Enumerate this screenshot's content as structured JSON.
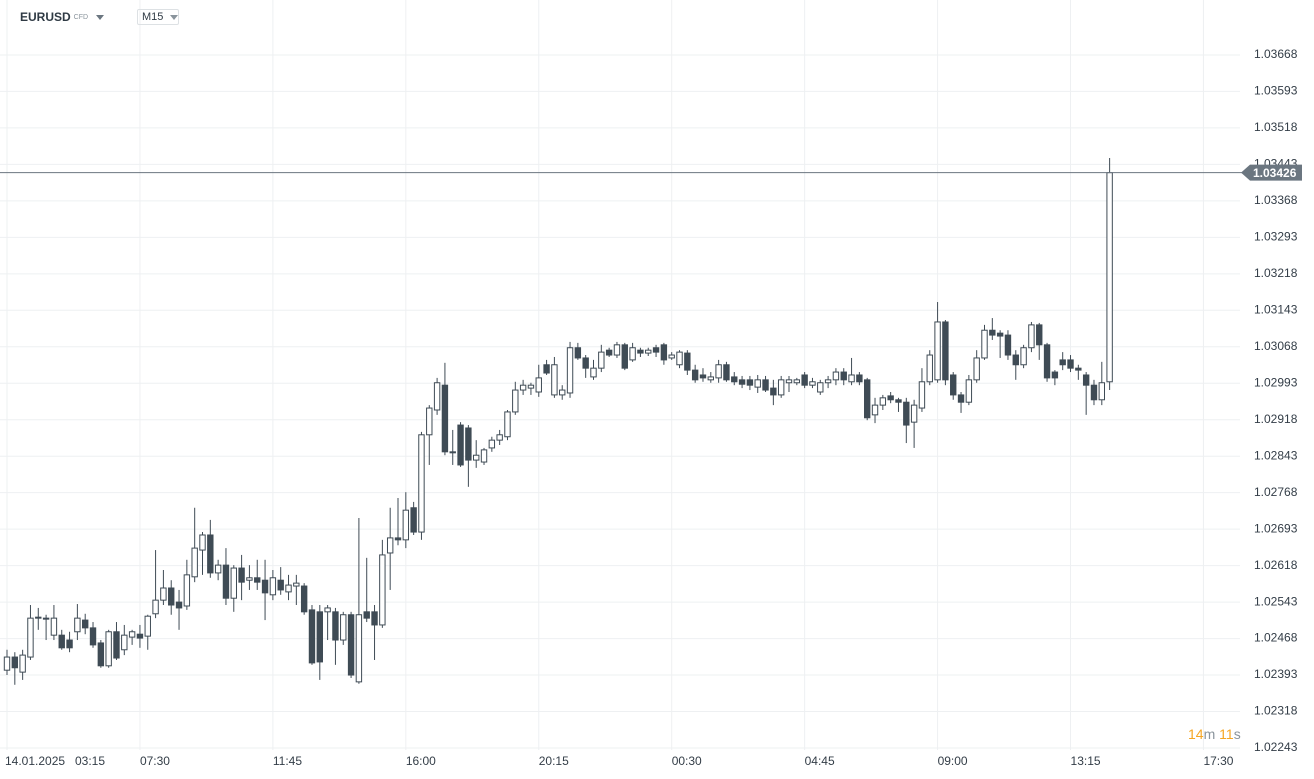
{
  "header": {
    "symbol": "EURUSD",
    "instrument_type": "CFD",
    "timeframe": "M15"
  },
  "countdown": [
    "14",
    "m",
    "11",
    "s"
  ],
  "chart_data": {
    "type": "candlestick",
    "date": "14.01.2025",
    "xticks": [
      "03:15",
      "07:30",
      "11:45",
      "16:00",
      "20:15",
      "00:30",
      "04:45",
      "09:00",
      "13:15",
      "17:30"
    ],
    "ylim": [
      1.02243,
      1.03781
    ],
    "yticks": [
      1.03668,
      1.03593,
      1.03518,
      1.03443,
      1.03368,
      1.03293,
      1.03218,
      1.03143,
      1.03068,
      1.02993,
      1.02918,
      1.02843,
      1.02768,
      1.02693,
      1.02618,
      1.02543,
      1.02468,
      1.02393,
      1.02318,
      1.02243
    ],
    "grid": true,
    "up_color": "#ffffff",
    "down_color": "#3f4b55",
    "current_price": 1.03426,
    "ohlc": [
      [
        1.02403,
        1.02445,
        1.02393,
        1.0243
      ],
      [
        1.0243,
        1.0244,
        1.02373,
        1.02408
      ],
      [
        1.02399,
        1.02445,
        1.02383,
        1.02434
      ],
      [
        1.0243,
        1.02537,
        1.02424,
        1.0251
      ],
      [
        1.0251,
        1.02531,
        1.02486,
        1.02512
      ],
      [
        1.0251,
        1.02517,
        1.02465,
        1.02508
      ],
      [
        1.02475,
        1.02537,
        1.02465,
        1.0251
      ],
      [
        1.02475,
        1.02486,
        1.02445,
        1.02449
      ],
      [
        1.02465,
        1.02482,
        1.0244,
        1.02449
      ],
      [
        1.02482,
        1.02539,
        1.02465,
        1.0251
      ],
      [
        1.02506,
        1.02519,
        1.02477,
        1.0249
      ],
      [
        1.0249,
        1.02502,
        1.02449,
        1.02455
      ],
      [
        1.02459,
        1.02465,
        1.02408,
        1.02412
      ],
      [
        1.02412,
        1.02486,
        1.02408,
        1.02482
      ],
      [
        1.02482,
        1.02502,
        1.02424,
        1.02428
      ],
      [
        1.02445,
        1.02496,
        1.02434,
        1.02475
      ],
      [
        1.02471,
        1.02486,
        1.02455,
        1.02482
      ],
      [
        1.02477,
        1.02496,
        1.02449,
        1.02469
      ],
      [
        1.02473,
        1.02517,
        1.02445,
        1.02514
      ],
      [
        1.02519,
        1.0265,
        1.0251,
        1.02547
      ],
      [
        1.02547,
        1.02609,
        1.02537,
        1.02572
      ],
      [
        1.02572,
        1.02588,
        1.02517,
        1.02537
      ],
      [
        1.02543,
        1.02568,
        1.02486,
        1.02531
      ],
      [
        1.02535,
        1.0263,
        1.02527,
        1.02599
      ],
      [
        1.02595,
        1.02737,
        1.02584,
        1.02654
      ],
      [
        1.0265,
        1.02687,
        1.02599,
        1.02681
      ],
      [
        1.02681,
        1.02712,
        1.02593,
        1.02603
      ],
      [
        1.02603,
        1.0263,
        1.02588,
        1.02619
      ],
      [
        1.02619,
        1.02654,
        1.02537,
        1.02551
      ],
      [
        1.02551,
        1.02619,
        1.02523,
        1.02613
      ],
      [
        1.02613,
        1.0264,
        1.02547,
        1.02584
      ],
      [
        1.02588,
        1.02619,
        1.02568,
        1.02593
      ],
      [
        1.02593,
        1.0263,
        1.02568,
        1.02584
      ],
      [
        1.02588,
        1.0263,
        1.02506,
        1.02562
      ],
      [
        1.02558,
        1.02609,
        1.02547,
        1.02593
      ],
      [
        1.02588,
        1.02615,
        1.02558,
        1.02568
      ],
      [
        1.02564,
        1.02599,
        1.02547,
        1.02578
      ],
      [
        1.02576,
        1.02599,
        1.02537,
        1.02582
      ],
      [
        1.02576,
        1.02582,
        1.02517,
        1.02523
      ],
      [
        1.02527,
        1.02537,
        1.02414,
        1.02418
      ],
      [
        1.02523,
        1.02537,
        1.02383,
        1.0242
      ],
      [
        1.02523,
        1.02537,
        1.02465,
        1.02531
      ],
      [
        1.02523,
        1.02531,
        1.02414,
        1.02465
      ],
      [
        1.02465,
        1.02523,
        1.02455,
        1.02517
      ],
      [
        1.02517,
        1.02523,
        1.02387,
        1.02393
      ],
      [
        1.02379,
        1.02716,
        1.02375,
        1.02517
      ],
      [
        1.02523,
        1.02634,
        1.02502,
        1.0251
      ],
      [
        1.02523,
        1.02537,
        1.02424,
        1.02496
      ],
      [
        1.02496,
        1.02671,
        1.0249,
        1.0264
      ],
      [
        1.02644,
        1.02737,
        1.02568,
        1.02675
      ],
      [
        1.02675,
        1.02757,
        1.0266,
        1.02671
      ],
      [
        1.02671,
        1.02769,
        1.02654,
        1.02732
      ],
      [
        1.02737,
        1.02749,
        1.02681,
        1.02687
      ],
      [
        1.02687,
        1.02893,
        1.02671,
        1.02887
      ],
      [
        1.02887,
        1.02948,
        1.02825,
        1.02942
      ],
      [
        1.02938,
        1.03004,
        1.02928,
        1.02994
      ],
      [
        1.02989,
        1.03035,
        1.02845,
        1.02852
      ],
      [
        1.02852,
        1.02897,
        1.02825,
        1.0285
      ],
      [
        1.02907,
        1.02913,
        1.02821,
        1.02825
      ],
      [
        1.02901,
        1.02907,
        1.0278,
        1.02835
      ],
      [
        1.02835,
        1.02876,
        1.02819,
        1.02845
      ],
      [
        1.02831,
        1.0286,
        1.02825,
        1.02856
      ],
      [
        1.0286,
        1.02883,
        1.02852,
        1.02876
      ],
      [
        1.02876,
        1.02897,
        1.02866,
        1.02887
      ],
      [
        1.02883,
        1.02938,
        1.02876,
        1.02934
      ],
      [
        1.02934,
        1.02996,
        1.02928,
        1.02979
      ],
      [
        1.02979,
        1.03,
        1.02969,
        1.02989
      ],
      [
        1.02983,
        1.02994,
        1.02969,
        1.02989
      ],
      [
        1.02975,
        1.03031,
        1.02965,
        1.03004
      ],
      [
        1.03031,
        1.03041,
        1.0301,
        1.03014
      ],
      [
        1.02969,
        1.03047,
        1.02963,
        1.03031
      ],
      [
        1.02969,
        1.02989,
        1.02959,
        1.02979
      ],
      [
        1.02973,
        1.03078,
        1.02963,
        1.03066
      ],
      [
        1.03066,
        1.03076,
        1.03041,
        1.03045
      ],
      [
        1.03045,
        1.03051,
        1.03004,
        1.03024
      ],
      [
        1.03006,
        1.03041,
        1.03,
        1.03024
      ],
      [
        1.03024,
        1.03072,
        1.03016,
        1.03057
      ],
      [
        1.03061,
        1.03066,
        1.03047,
        1.03051
      ],
      [
        1.03051,
        1.03078,
        1.03045,
        1.03072
      ],
      [
        1.03072,
        1.03076,
        1.0302,
        1.03024
      ],
      [
        1.03041,
        1.03076,
        1.03037,
        1.03066
      ],
      [
        1.03061,
        1.03066,
        1.03047,
        1.03055
      ],
      [
        1.03055,
        1.03066,
        1.03049,
        1.03061
      ],
      [
        1.03066,
        1.03072,
        1.03047,
        1.03057
      ],
      [
        1.03072,
        1.03076,
        1.03031,
        1.03041
      ],
      [
        1.03045,
        1.03057,
        1.03041,
        1.03051
      ],
      [
        1.03031,
        1.03061,
        1.03024,
        1.03057
      ],
      [
        1.03055,
        1.03061,
        1.0301,
        1.0302
      ],
      [
        1.0302,
        1.03031,
        1.02994,
        1.03
      ],
      [
        1.0301,
        1.03024,
        1.02996,
        1.03004
      ],
      [
        1.03,
        1.03016,
        1.02994,
        1.03006
      ],
      [
        1.03004,
        1.03041,
        1.02994,
        1.03031
      ],
      [
        1.03031,
        1.03037,
        1.02996,
        1.03
      ],
      [
        1.03006,
        1.03016,
        1.02989,
        1.02996
      ],
      [
        1.03,
        1.03008,
        1.02983,
        1.02991
      ],
      [
        1.03,
        1.03008,
        1.02979,
        1.02989
      ],
      [
        1.02985,
        1.0301,
        1.02973,
        1.03
      ],
      [
        1.03,
        1.03008,
        1.02975,
        1.02979
      ],
      [
        1.02983,
        1.03,
        1.02948,
        1.02969
      ],
      [
        1.02969,
        1.03008,
        1.02963,
        1.03
      ],
      [
        1.02994,
        1.03008,
        1.02975,
        1.03
      ],
      [
        1.02994,
        1.03004,
        1.02989,
        1.03
      ],
      [
        1.0301,
        1.03016,
        1.02983,
        1.02989
      ],
      [
        1.02989,
        1.03004,
        1.02983,
        1.02996
      ],
      [
        1.02975,
        1.03,
        1.02969,
        1.02994
      ],
      [
        1.02994,
        1.03008,
        1.02983,
        1.03
      ],
      [
        1.03,
        1.03024,
        1.02989,
        1.03016
      ],
      [
        1.03016,
        1.03024,
        1.02989,
        1.03
      ],
      [
        1.02996,
        1.03045,
        1.02989,
        1.0301
      ],
      [
        1.0301,
        1.03016,
        1.02989,
        1.02996
      ],
      [
        1.03,
        1.03004,
        1.02917,
        1.02922
      ],
      [
        1.02928,
        1.02963,
        1.02911,
        1.02948
      ],
      [
        1.02948,
        1.02969,
        1.02938,
        1.02963
      ],
      [
        1.02967,
        1.02975,
        1.02952,
        1.02959
      ],
      [
        1.02959,
        1.02963,
        1.02934,
        1.02954
      ],
      [
        1.02954,
        1.02963,
        1.0287,
        1.02907
      ],
      [
        1.02913,
        1.02959,
        1.0286,
        1.02948
      ],
      [
        1.02942,
        1.03024,
        1.02934,
        1.02996
      ],
      [
        1.02996,
        1.03061,
        1.02989,
        1.03051
      ],
      [
        1.03,
        1.0316,
        1.02994,
        1.03119
      ],
      [
        1.03119,
        1.03123,
        1.02989,
        1.03
      ],
      [
        1.0301,
        1.03016,
        1.02959,
        1.02969
      ],
      [
        1.02969,
        1.02975,
        1.02932,
        1.02954
      ],
      [
        1.02954,
        1.0301,
        1.02948,
        1.03
      ],
      [
        1.03,
        1.03061,
        1.02994,
        1.03045
      ],
      [
        1.03045,
        1.03113,
        1.03041,
        1.03102
      ],
      [
        1.03102,
        1.03127,
        1.03082,
        1.03092
      ],
      [
        1.03096,
        1.03102,
        1.03045,
        1.0309
      ],
      [
        1.03092,
        1.03102,
        1.03041,
        1.03051
      ],
      [
        1.03051,
        1.03061,
        1.03,
        1.03031
      ],
      [
        1.03031,
        1.03072,
        1.03024,
        1.03066
      ],
      [
        1.03066,
        1.03119,
        1.03057,
        1.03113
      ],
      [
        1.03113,
        1.03117,
        1.03041,
        1.03072
      ],
      [
        1.03072,
        1.03076,
        1.02996,
        1.03004
      ],
      [
        1.03016,
        1.0302,
        1.02989,
        1.03004
      ],
      [
        1.03041,
        1.03057,
        1.0302,
        1.03031
      ],
      [
        1.03041,
        1.03051,
        1.03016,
        1.03024
      ],
      [
        1.03024,
        1.03031,
        1.03,
        1.0302
      ],
      [
        1.0301,
        1.03016,
        1.02928,
        1.02989
      ],
      [
        1.02989,
        1.03,
        1.02948,
        1.02959
      ],
      [
        1.02959,
        1.03037,
        1.02948,
        1.02994
      ],
      [
        1.02996,
        1.03456,
        1.02979,
        1.03426
      ]
    ]
  }
}
